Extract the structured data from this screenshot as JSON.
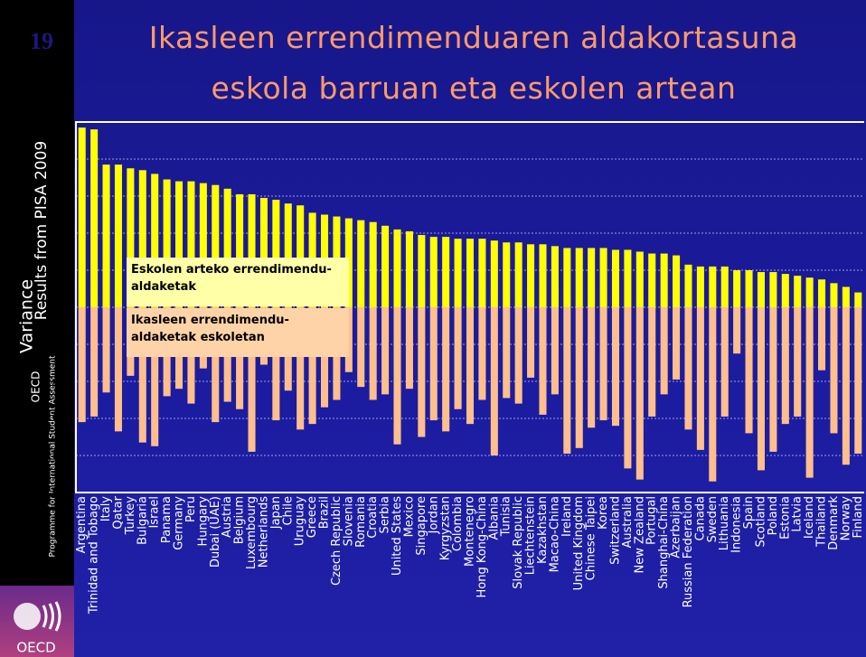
{
  "slide_number": "19",
  "title_lines": [
    "Ikasleen errendimenduaren aldakortasuna",
    "eskola barruan eta eskolen artean"
  ],
  "sidebar": {
    "subtitle": "Results from PISA 2009",
    "org": "OECD",
    "programme": "Programme for International Student Assessment",
    "logo": "OECD"
  },
  "chart_data": {
    "type": "bar",
    "ylabel": "Variance",
    "categories": [
      "Argentina",
      "Trinidad and Tobago",
      "Italy",
      "Qatar",
      "Turkey",
      "Bulgaria",
      "Israel",
      "Panama",
      "Germany",
      "Peru",
      "Hungary",
      "Dubai (UAE)",
      "Austria",
      "Belgium",
      "Luxembourg",
      "Netherlands",
      "Japan",
      "Chile",
      "Uruguay",
      "Greece",
      "Brazil",
      "Czech Republic",
      "Slovenia",
      "Romania",
      "Croatia",
      "Serbia",
      "United States",
      "Mexico",
      "Singapore",
      "Jordan",
      "Kyrgyzstan",
      "Colombia",
      "Montenegro",
      "Hong Kong-China",
      "Albania",
      "Tunisia",
      "Slovak Republic",
      "Liechtenstein",
      "Kazakhstan",
      "Macao-China",
      "Ireland",
      "United Kingdom",
      "Chinese Taipei",
      "Korea",
      "Switzerland",
      "Australia",
      "New Zealand",
      "Portugal",
      "Shanghai-China",
      "Azerbaijan",
      "Russian Federation",
      "Canada",
      "Sweden",
      "Lithuania",
      "Indonesia",
      "Spain",
      "Scotland",
      "Poland",
      "Estonia",
      "Latvia",
      "Iceland",
      "Thailand",
      "Denmark",
      "Norway",
      "Finland"
    ],
    "series": [
      {
        "name": "Eskolen arteko errendimendu-aldaketak",
        "color": "#ffff00",
        "values": [
          97,
          96,
          77,
          77,
          75,
          74,
          72,
          69,
          68,
          68,
          67,
          66,
          64,
          61,
          61,
          59,
          58,
          56,
          55,
          51,
          50,
          49,
          48,
          47,
          46,
          44,
          42,
          41,
          39,
          38,
          38,
          37,
          37,
          37,
          36,
          35,
          35,
          34,
          34,
          33,
          32,
          32,
          32,
          32,
          31,
          31,
          30,
          29,
          29,
          28,
          23,
          22,
          22,
          22,
          20,
          20,
          19,
          19,
          18,
          17,
          16,
          15,
          13,
          11,
          8
        ]
      },
      {
        "name": "Ikasleen errendimendu-aldaketak eskoletan",
        "color": "#ffbf8c",
        "values": [
          -62,
          -59,
          -46,
          -67,
          -37,
          -73,
          -75,
          -48,
          -44,
          -52,
          -33,
          -62,
          -51,
          -55,
          -78,
          -31,
          -61,
          -45,
          -66,
          -63,
          -54,
          -50,
          -35,
          -43,
          -50,
          -47,
          -74,
          -44,
          -70,
          -61,
          -67,
          -55,
          -63,
          -50,
          -80,
          -49,
          -52,
          -38,
          -58,
          -47,
          -79,
          -76,
          -65,
          -61,
          -64,
          -87,
          -93,
          -59,
          -47,
          -39,
          -66,
          -77,
          -94,
          -59,
          -25,
          -68,
          -88,
          -78,
          -63,
          -59,
          -92,
          -34,
          -68,
          -85,
          -79
        ]
      }
    ],
    "ylim": [
      -100,
      100
    ],
    "yticks": [
      100,
      80,
      60,
      40,
      20,
      0,
      {
        "value": -20,
        "label": "20"
      },
      {
        "value": -40,
        "label": "40"
      },
      {
        "value": -60,
        "label": "60"
      },
      {
        "value": -80,
        "label": "80"
      },
      {
        "value": -100,
        "label": "100"
      }
    ],
    "grid": true
  }
}
